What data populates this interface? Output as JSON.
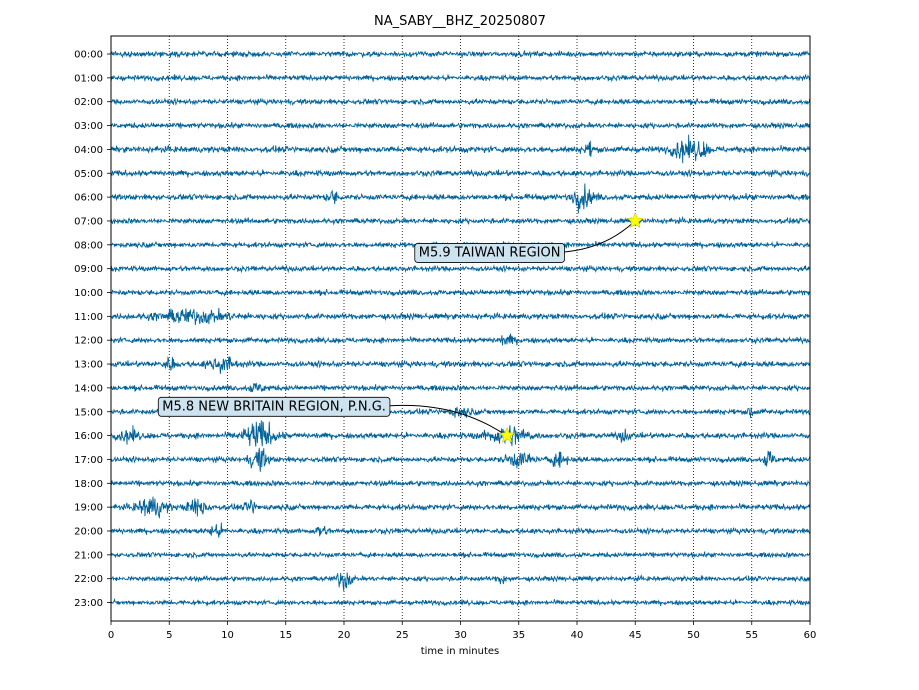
{
  "chart_data": {
    "type": "line",
    "title": "NA_SABY__BHZ_20250807",
    "xlabel": "time in minutes",
    "ylabel": "",
    "xlim": [
      0,
      60
    ],
    "x_ticks": [
      "0",
      "5",
      "10",
      "15",
      "20",
      "25",
      "30",
      "35",
      "40",
      "45",
      "50",
      "55",
      "60"
    ],
    "hour_labels": [
      "00:00",
      "01:00",
      "02:00",
      "03:00",
      "04:00",
      "05:00",
      "06:00",
      "07:00",
      "08:00",
      "09:00",
      "10:00",
      "11:00",
      "12:00",
      "13:00",
      "14:00",
      "15:00",
      "16:00",
      "17:00",
      "18:00",
      "19:00",
      "20:00",
      "21:00",
      "22:00",
      "23:00"
    ],
    "grid": "vertical dotted lines at each x tick",
    "trace_color": "#04649a",
    "noise_amplitude": [
      0.22,
      0.22,
      0.22,
      0.22,
      0.26,
      0.24,
      0.24,
      0.22,
      0.22,
      0.22,
      0.22,
      0.24,
      0.22,
      0.24,
      0.22,
      0.22,
      0.24,
      0.22,
      0.22,
      0.24,
      0.22,
      0.2,
      0.2,
      0.2
    ],
    "bursts": [
      {
        "hour": 4,
        "minute": 49,
        "amp": 0.85,
        "width": 0.6
      },
      {
        "hour": 4,
        "minute": 50.5,
        "amp": 0.7,
        "width": 0.5
      },
      {
        "hour": 4,
        "minute": 41,
        "amp": 0.5,
        "width": 0.3
      },
      {
        "hour": 6,
        "minute": 40.5,
        "amp": 0.9,
        "width": 0.6
      },
      {
        "hour": 6,
        "minute": 19,
        "amp": 0.5,
        "width": 0.3
      },
      {
        "hour": 11,
        "minute": 7,
        "amp": 0.55,
        "width": 2.0
      },
      {
        "hour": 13,
        "minute": 9.5,
        "amp": 0.6,
        "width": 0.8
      },
      {
        "hour": 13,
        "minute": 5,
        "amp": 0.45,
        "width": 0.4
      },
      {
        "hour": 16,
        "minute": 12.7,
        "amp": 1.2,
        "width": 0.9
      },
      {
        "hour": 16,
        "minute": 1.5,
        "amp": 0.5,
        "width": 0.6
      },
      {
        "hour": 16,
        "minute": 34,
        "amp": 0.8,
        "width": 1.2
      },
      {
        "hour": 16,
        "minute": 44,
        "amp": 0.45,
        "width": 0.3
      },
      {
        "hour": 17,
        "minute": 12.7,
        "amp": 1.0,
        "width": 0.5
      },
      {
        "hour": 17,
        "minute": 35,
        "amp": 0.6,
        "width": 0.8
      },
      {
        "hour": 17,
        "minute": 38.5,
        "amp": 0.6,
        "width": 0.5
      },
      {
        "hour": 17,
        "minute": 56.5,
        "amp": 0.8,
        "width": 0.3
      },
      {
        "hour": 19,
        "minute": 3.5,
        "amp": 0.9,
        "width": 0.8
      },
      {
        "hour": 19,
        "minute": 7.5,
        "amp": 0.7,
        "width": 0.6
      },
      {
        "hour": 19,
        "minute": 12,
        "amp": 0.6,
        "width": 0.3
      },
      {
        "hour": 20,
        "minute": 9,
        "amp": 0.5,
        "width": 0.5
      },
      {
        "hour": 20,
        "minute": 18,
        "amp": 0.5,
        "width": 0.3
      },
      {
        "hour": 22,
        "minute": 20,
        "amp": 1.0,
        "width": 0.4
      },
      {
        "hour": 22,
        "minute": 33.5,
        "amp": 0.5,
        "width": 0.2
      },
      {
        "hour": 15,
        "minute": 55,
        "amp": 0.6,
        "width": 0.2
      },
      {
        "hour": 14,
        "minute": 12.5,
        "amp": 0.35,
        "width": 0.5
      },
      {
        "hour": 12,
        "minute": 34,
        "amp": 0.35,
        "width": 0.5
      },
      {
        "hour": 15,
        "minute": 30,
        "amp": 0.4,
        "width": 0.6
      }
    ],
    "events": [
      {
        "label": "M5.9 TAIWAN REGION",
        "hour": 7,
        "minute": 45,
        "label_hour": 8.3,
        "label_minute": 32.5
      },
      {
        "label": "M5.8 NEW BRITAIN REGION, P.N.G.",
        "hour": 16,
        "minute": 34,
        "label_hour": 14.75,
        "label_minute": 14
      },
      {
        "label": "",
        "hour": 7,
        "minute": 45
      },
      {
        "label": "",
        "hour": 16,
        "minute": 34
      }
    ],
    "marker_color": "#ffff00",
    "label_box_color": "#cde3ef"
  }
}
